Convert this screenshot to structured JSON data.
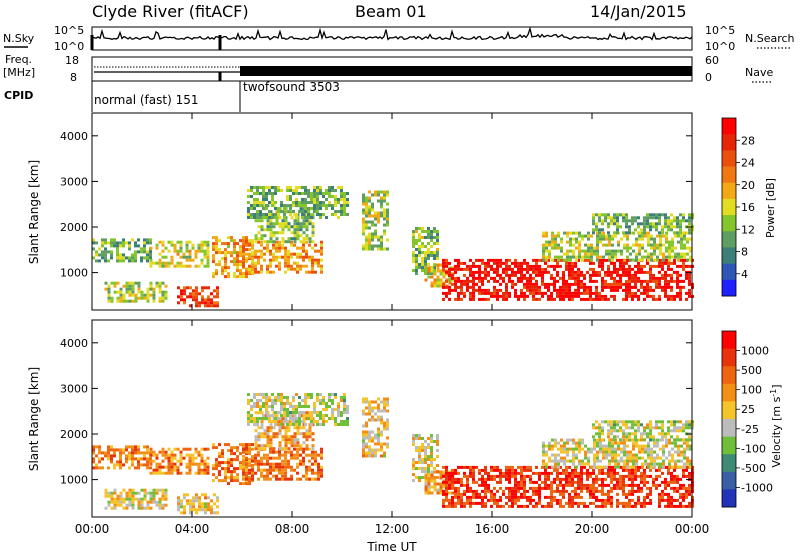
{
  "header": {
    "station": "Clyde River (fitACF)",
    "beam": "Beam 01",
    "date": "14/Jan/2015"
  },
  "noise_panel": {
    "left_label": "N.Sky",
    "right_label": "N.Search",
    "left_ticks": [
      "10^5",
      "10^0"
    ],
    "right_ticks": [
      "10^5",
      "10^0"
    ]
  },
  "freq_panel": {
    "left_label": "Freq.",
    "left_unit": "[MHz]",
    "right_label": "Nave",
    "left_ticks": [
      "18",
      "8"
    ],
    "right_ticks": [
      "60",
      "0"
    ]
  },
  "cpid": {
    "label": "CPID",
    "modes": [
      {
        "name": "normal (fast) 151",
        "start_hour": 0,
        "end_hour": 6
      },
      {
        "name": "twofsound 3503",
        "start_hour": 6,
        "end_hour": 24
      }
    ]
  },
  "chart_data": [
    {
      "type": "heatmap",
      "title": "",
      "xlabel": "",
      "ylabel": "Slant Range [km]",
      "xlim": [
        0,
        24
      ],
      "ylim": [
        180,
        4500
      ],
      "yticks": [
        "1000",
        "2000",
        "3000",
        "4000"
      ],
      "colorbar": {
        "label": "Power [dB]",
        "ticks": [
          "4",
          "8",
          "12",
          "16",
          "20",
          "24",
          "28"
        ],
        "colors": [
          "#1f22ff",
          "#2f56b4",
          "#3c7f78",
          "#5f9e62",
          "#83c52a",
          "#e2dd22",
          "#f3a915",
          "#f07812",
          "#ea4f0b",
          "#e52707",
          "#ff0000"
        ]
      },
      "regions": [
        {
          "x": [
            0.0,
            2.3
          ],
          "y": [
            1250,
            1750
          ],
          "level": 0.35
        },
        {
          "x": [
            2.3,
            4.6
          ],
          "y": [
            1150,
            1700
          ],
          "level": 0.5
        },
        {
          "x": [
            3.4,
            5.0
          ],
          "y": [
            250,
            700
          ],
          "level": 0.8
        },
        {
          "x": [
            0.5,
            3.0
          ],
          "y": [
            350,
            800
          ],
          "level": 0.45
        },
        {
          "x": [
            4.8,
            6.4
          ],
          "y": [
            900,
            1800
          ],
          "level": 0.6
        },
        {
          "x": [
            6.0,
            9.2
          ],
          "y": [
            1000,
            1700
          ],
          "level": 0.65
        },
        {
          "x": [
            6.5,
            8.8
          ],
          "y": [
            1700,
            2500
          ],
          "level": 0.4
        },
        {
          "x": [
            6.2,
            10.2
          ],
          "y": [
            2200,
            2900
          ],
          "level": 0.35
        },
        {
          "x": [
            10.8,
            11.8
          ],
          "y": [
            1500,
            2800
          ],
          "level": 0.45
        },
        {
          "x": [
            12.8,
            13.8
          ],
          "y": [
            1000,
            2000
          ],
          "level": 0.4
        },
        {
          "x": [
            13.3,
            14.5
          ],
          "y": [
            700,
            1200
          ],
          "level": 0.55
        },
        {
          "x": [
            14.0,
            24.0
          ],
          "y": [
            400,
            1300
          ],
          "level": 0.93
        },
        {
          "x": [
            18.0,
            24.0
          ],
          "y": [
            1300,
            1900
          ],
          "level": 0.45
        },
        {
          "x": [
            20.0,
            24.0
          ],
          "y": [
            1900,
            2300
          ],
          "level": 0.35
        }
      ]
    },
    {
      "type": "heatmap",
      "title": "",
      "xlabel": "Time UT",
      "ylabel": "Slant Range [km]",
      "xlim": [
        0,
        24
      ],
      "ylim": [
        180,
        4500
      ],
      "xticks": [
        "00:00",
        "04:00",
        "08:00",
        "12:00",
        "16:00",
        "20:00",
        "00:00"
      ],
      "yticks": [
        "1000",
        "2000",
        "3000",
        "4000"
      ],
      "colorbar": {
        "label": "Velocity [m s",
        "label_sup": "-1",
        "label_end": "]",
        "ticks": [
          "1000",
          "500",
          "100",
          "25",
          "-25",
          "-100",
          "-500",
          "-1000"
        ],
        "colors": [
          "#2233b8",
          "#3b5fa4",
          "#3d8a75",
          "#6fbf3a",
          "#bcbcbc",
          "#f5c32a",
          "#f38f16",
          "#ee6410",
          "#e8330b",
          "#ff0000"
        ]
      },
      "regions": [
        {
          "x": [
            0.0,
            2.3
          ],
          "y": [
            1250,
            1750
          ],
          "level": 0.7
        },
        {
          "x": [
            2.3,
            4.6
          ],
          "y": [
            1150,
            1700
          ],
          "level": 0.68
        },
        {
          "x": [
            3.4,
            5.0
          ],
          "y": [
            250,
            700
          ],
          "level": 0.55
        },
        {
          "x": [
            0.5,
            3.0
          ],
          "y": [
            350,
            800
          ],
          "level": 0.5
        },
        {
          "x": [
            4.8,
            6.4
          ],
          "y": [
            900,
            1800
          ],
          "level": 0.72
        },
        {
          "x": [
            6.0,
            9.2
          ],
          "y": [
            1000,
            1700
          ],
          "level": 0.74
        },
        {
          "x": [
            6.5,
            8.8
          ],
          "y": [
            1700,
            2500
          ],
          "level": 0.6
        },
        {
          "x": [
            6.2,
            10.2
          ],
          "y": [
            2200,
            2900
          ],
          "level": 0.45
        },
        {
          "x": [
            10.8,
            11.8
          ],
          "y": [
            1500,
            2800
          ],
          "level": 0.55
        },
        {
          "x": [
            12.8,
            13.8
          ],
          "y": [
            1000,
            2000
          ],
          "level": 0.5
        },
        {
          "x": [
            13.3,
            14.5
          ],
          "y": [
            700,
            1200
          ],
          "level": 0.6
        },
        {
          "x": [
            14.0,
            24.0
          ],
          "y": [
            400,
            1300
          ],
          "level": 0.86
        },
        {
          "x": [
            18.0,
            24.0
          ],
          "y": [
            1300,
            1900
          ],
          "level": 0.5
        },
        {
          "x": [
            20.0,
            24.0
          ],
          "y": [
            1900,
            2300
          ],
          "level": 0.45
        }
      ]
    }
  ]
}
